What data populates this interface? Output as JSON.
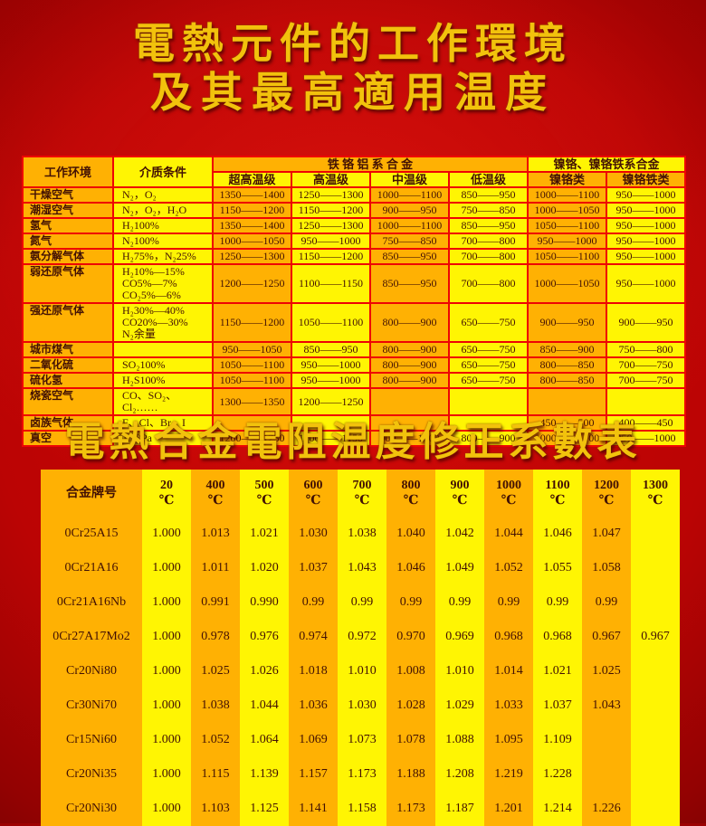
{
  "page": {
    "title_line1": "電熱元件的工作環境",
    "title_line2": "及其最高適用温度",
    "title2": "電熱合金電阻温度修正系數表"
  },
  "colors": {
    "background_red": "#cc0505",
    "stripe_orange": "#ffb103",
    "stripe_yellow": "#fff503",
    "grid_red": "#ee0404",
    "title_gold": "#f2c20c",
    "text_dark": "#421104"
  },
  "table1": {
    "header": {
      "col_env": "工作环境",
      "col_medium": "介质条件",
      "group_fecral": "铁 铬 铝 系 合 金",
      "group_nicr": "镍铬、镍铬铁系合金",
      "sub_cols": [
        "超高温级",
        "高温级",
        "中温级",
        "低温级",
        "镍铬类",
        "镍铬铁类"
      ]
    },
    "rows": [
      {
        "env": "干燥空气",
        "media": [
          "N₂，O₂"
        ],
        "values": [
          "1350——1400",
          "1250——1300",
          "1000——1100",
          "850——950",
          "1000——1100",
          "950——1000"
        ]
      },
      {
        "env": "潮湿空气",
        "media": [
          "N₂，O₂，H₂O"
        ],
        "values": [
          "1150——1200",
          "1150——1200",
          "900——950",
          "750——850",
          "1000——1050",
          "950——1000"
        ]
      },
      {
        "env": "氢气",
        "media": [
          "H₂100%"
        ],
        "values": [
          "1350——1400",
          "1250——1300",
          "1000——1100",
          "850——950",
          "1050——1100",
          "950——1000"
        ]
      },
      {
        "env": "氮气",
        "media": [
          "N₂100%"
        ],
        "values": [
          "1000——1050",
          "950——1000",
          "750——850",
          "700——800",
          "950——1000",
          "950——1000"
        ]
      },
      {
        "env": "氨分解气体",
        "media": [
          "H₂75%，N₂25%"
        ],
        "values": [
          "1250——1300",
          "1150——1200",
          "850——950",
          "700——800",
          "1050——1100",
          "950——1000"
        ]
      },
      {
        "env": "弱还原气体",
        "media": [
          "H₂10%—15%",
          "CO5%—7%",
          "CO₂5%—6%"
        ],
        "values": [
          "1200——1250",
          "1100——1150",
          "850——950",
          "700——800",
          "1000——1050",
          "950——1000"
        ]
      },
      {
        "env": "强还原气体",
        "media": [
          "H₂30%—40%",
          "CO20%—30%",
          "N₂余量"
        ],
        "values": [
          "1150——1200",
          "1050——1100",
          "800——900",
          "650——750",
          "900——950",
          "900——950"
        ]
      },
      {
        "env": "城市煤气",
        "media": [
          ""
        ],
        "values": [
          "950——1050",
          "850——950",
          "800——900",
          "650——750",
          "850——900",
          "750——800"
        ]
      },
      {
        "env": "二氧化硫",
        "media": [
          "SO₂100%"
        ],
        "values": [
          "1050——1100",
          "950——1000",
          "800——900",
          "650——750",
          "800——850",
          "700——750"
        ]
      },
      {
        "env": "硫化氢",
        "media": [
          "H₂S100%"
        ],
        "values": [
          "1050——1100",
          "950——1000",
          "800——900",
          "650——750",
          "800——850",
          "700——750"
        ]
      },
      {
        "env": "烧瓷空气",
        "media": [
          "CO、SO₂、Cl₂……"
        ],
        "values": [
          "1300——1350",
          "1200——1250",
          "",
          "",
          "",
          ""
        ]
      },
      {
        "env": "卤族气体",
        "media": [
          "F、Cl、Br、I"
        ],
        "values": [
          "",
          "",
          "",
          "",
          "450——500",
          "400——450"
        ]
      },
      {
        "env": "真空",
        "media": [
          "1.33Pa"
        ],
        "values": [
          "1200——1250",
          "1100——1150",
          "900——1000",
          "800——900",
          "1000——1100",
          "950——1000"
        ]
      }
    ]
  },
  "table2": {
    "header_label": "合金牌号",
    "unit": "℃",
    "temps": [
      "20",
      "400",
      "500",
      "600",
      "700",
      "800",
      "900",
      "1000",
      "1100",
      "1200",
      "1300"
    ],
    "rows": [
      {
        "grade": "0Cr25A15",
        "values": [
          "1.000",
          "1.013",
          "1.021",
          "1.030",
          "1.038",
          "1.040",
          "1.042",
          "1.044",
          "1.046",
          "1.047",
          ""
        ]
      },
      {
        "grade": "0Cr21A16",
        "values": [
          "1.000",
          "1.011",
          "1.020",
          "1.037",
          "1.043",
          "1.046",
          "1.049",
          "1.052",
          "1.055",
          "1.058",
          ""
        ]
      },
      {
        "grade": "0Cr21A16Nb",
        "values": [
          "1.000",
          "0.991",
          "0.990",
          "0.99",
          "0.99",
          "0.99",
          "0.99",
          "0.99",
          "0.99",
          "0.99",
          ""
        ]
      },
      {
        "grade": "0Cr27A17Mo2",
        "values": [
          "1.000",
          "0.978",
          "0.976",
          "0.974",
          "0.972",
          "0.970",
          "0.969",
          "0.968",
          "0.968",
          "0.967",
          "0.967"
        ]
      },
      {
        "grade": "Cr20Ni80",
        "values": [
          "1.000",
          "1.025",
          "1.026",
          "1.018",
          "1.010",
          "1.008",
          "1.010",
          "1.014",
          "1.021",
          "1.025",
          ""
        ]
      },
      {
        "grade": "Cr30Ni70",
        "values": [
          "1.000",
          "1.038",
          "1.044",
          "1.036",
          "1.030",
          "1.028",
          "1.029",
          "1.033",
          "1.037",
          "1.043",
          ""
        ]
      },
      {
        "grade": "Cr15Ni60",
        "values": [
          "1.000",
          "1.052",
          "1.064",
          "1.069",
          "1.073",
          "1.078",
          "1.088",
          "1.095",
          "1.109",
          "",
          ""
        ]
      },
      {
        "grade": "Cr20Ni35",
        "values": [
          "1.000",
          "1.115",
          "1.139",
          "1.157",
          "1.173",
          "1.188",
          "1.208",
          "1.219",
          "1.228",
          "",
          ""
        ]
      },
      {
        "grade": "Cr20Ni30",
        "values": [
          "1.000",
          "1.103",
          "1.125",
          "1.141",
          "1.158",
          "1.173",
          "1.187",
          "1.201",
          "1.214",
          "1.226",
          ""
        ]
      }
    ]
  }
}
